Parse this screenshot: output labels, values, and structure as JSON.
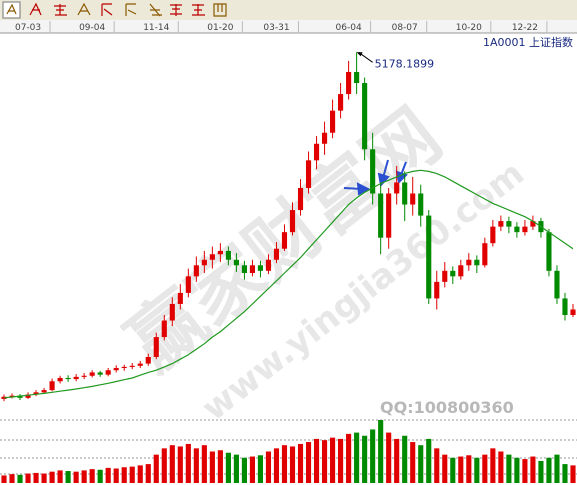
{
  "chart_data": {
    "type": "candlestick",
    "title": "1A0001 上证指数",
    "annotation": "5178.1899",
    "categories": [
      null,
      null,
      null,
      "07-03",
      null,
      null,
      null,
      null,
      null,
      null,
      null,
      "09-04",
      null,
      null,
      null,
      null,
      null,
      null,
      null,
      "11-14",
      null,
      null,
      null,
      null,
      null,
      null,
      null,
      "01-20",
      null,
      null,
      null,
      null,
      null,
      null,
      "03-31",
      null,
      null,
      null,
      null,
      null,
      null,
      null,
      null,
      "06-04",
      null,
      null,
      null,
      null,
      null,
      null,
      "08-07",
      null,
      null,
      null,
      null,
      null,
      null,
      null,
      "10-20",
      null,
      null,
      null,
      null,
      null,
      null,
      "12-22",
      null,
      null,
      null,
      null,
      null,
      null
    ],
    "ohlc": [
      [
        2040,
        2080,
        2020,
        2060
      ],
      [
        2060,
        2090,
        2045,
        2070
      ],
      [
        2070,
        2085,
        2030,
        2050
      ],
      [
        2050,
        2100,
        2040,
        2080
      ],
      [
        2080,
        2120,
        2065,
        2100
      ],
      [
        2100,
        2140,
        2085,
        2120
      ],
      [
        2120,
        2225,
        2110,
        2200
      ],
      [
        2200,
        2250,
        2180,
        2230
      ],
      [
        2230,
        2255,
        2195,
        2220
      ],
      [
        2220,
        2265,
        2200,
        2240
      ],
      [
        2240,
        2275,
        2220,
        2250
      ],
      [
        2250,
        2300,
        2235,
        2280
      ],
      [
        2280,
        2295,
        2240,
        2260
      ],
      [
        2260,
        2320,
        2245,
        2300
      ],
      [
        2300,
        2345,
        2280,
        2320
      ],
      [
        2320,
        2350,
        2295,
        2330
      ],
      [
        2330,
        2365,
        2310,
        2340
      ],
      [
        2340,
        2385,
        2320,
        2360
      ],
      [
        2360,
        2450,
        2340,
        2420
      ],
      [
        2420,
        2640,
        2400,
        2600
      ],
      [
        2600,
        2800,
        2570,
        2750
      ],
      [
        2750,
        2960,
        2700,
        2900
      ],
      [
        2900,
        3080,
        2850,
        3000
      ],
      [
        3000,
        3220,
        2960,
        3150
      ],
      [
        3150,
        3330,
        3100,
        3250
      ],
      [
        3250,
        3380,
        3180,
        3300
      ],
      [
        3300,
        3420,
        3220,
        3350
      ],
      [
        3350,
        3450,
        3280,
        3380
      ],
      [
        3380,
        3420,
        3250,
        3300
      ],
      [
        3300,
        3360,
        3190,
        3250
      ],
      [
        3250,
        3290,
        3120,
        3180
      ],
      [
        3180,
        3300,
        3150,
        3250
      ],
      [
        3250,
        3290,
        3140,
        3200
      ],
      [
        3200,
        3350,
        3170,
        3300
      ],
      [
        3300,
        3460,
        3270,
        3400
      ],
      [
        3400,
        3620,
        3380,
        3550
      ],
      [
        3550,
        3820,
        3520,
        3750
      ],
      [
        3750,
        4030,
        3700,
        3950
      ],
      [
        3950,
        4280,
        3900,
        4200
      ],
      [
        4200,
        4420,
        4120,
        4350
      ],
      [
        4350,
        4550,
        4250,
        4450
      ],
      [
        4450,
        4750,
        4400,
        4650
      ],
      [
        4650,
        4900,
        4580,
        4800
      ],
      [
        4800,
        5100,
        4750,
        5000
      ],
      [
        5000,
        5178.1899,
        4800,
        4900
      ],
      [
        4900,
        4950,
        4200,
        4300
      ],
      [
        4300,
        4450,
        3800,
        3900
      ],
      [
        3900,
        4000,
        3350,
        3500
      ],
      [
        3500,
        3950,
        3400,
        3900
      ],
      [
        3900,
        4150,
        3800,
        4000
      ],
      [
        4000,
        4100,
        3650,
        3800
      ],
      [
        3800,
        4050,
        3700,
        3900
      ],
      [
        3900,
        3980,
        3600,
        3700
      ],
      [
        3700,
        3750,
        2900,
        2950
      ],
      [
        2950,
        3200,
        2850,
        3100
      ],
      [
        3100,
        3280,
        3050,
        3200
      ],
      [
        3200,
        3240,
        3080,
        3150
      ],
      [
        3150,
        3300,
        3120,
        3250
      ],
      [
        3250,
        3360,
        3200,
        3300
      ],
      [
        3300,
        3340,
        3180,
        3250
      ],
      [
        3250,
        3500,
        3230,
        3450
      ],
      [
        3450,
        3660,
        3420,
        3600
      ],
      [
        3600,
        3700,
        3560,
        3650
      ],
      [
        3650,
        3690,
        3540,
        3600
      ],
      [
        3600,
        3640,
        3500,
        3550
      ],
      [
        3550,
        3660,
        3520,
        3600
      ],
      [
        3600,
        3700,
        3570,
        3650
      ],
      [
        3650,
        3680,
        3500,
        3550
      ],
      [
        3550,
        3580,
        3150,
        3200
      ],
      [
        3200,
        3250,
        2900,
        2950
      ],
      [
        2950,
        3000,
        2750,
        2800
      ],
      [
        2800,
        2900,
        2780,
        2850
      ]
    ],
    "up_color": "#e00000",
    "down_color": "#008a00",
    "ma": {
      "color": "#1f9a1f",
      "values": [
        2050,
        2058,
        2066,
        2074,
        2082,
        2090,
        2100,
        2110,
        2120,
        2130,
        2142,
        2154,
        2168,
        2182,
        2198,
        2214,
        2230,
        2255,
        2280,
        2300,
        2330,
        2360,
        2400,
        2440,
        2490,
        2540,
        2600,
        2650,
        2710,
        2770,
        2830,
        2900,
        2970,
        3040,
        3110,
        3180,
        3250,
        3320,
        3400,
        3480,
        3560,
        3640,
        3720,
        3800,
        3860,
        3910,
        3950,
        3990,
        4020,
        4050,
        4080,
        4100,
        4110,
        4100,
        4080,
        4050,
        4010,
        3970,
        3930,
        3890,
        3850,
        3810,
        3780,
        3750,
        3720,
        3690,
        3650,
        3600,
        3550,
        3500,
        3450,
        3400
      ]
    },
    "volume": {
      "values": [
        12,
        14,
        13,
        15,
        16,
        15,
        18,
        20,
        19,
        18,
        20,
        22,
        21,
        24,
        23,
        25,
        26,
        28,
        30,
        45,
        55,
        60,
        58,
        62,
        55,
        60,
        50,
        52,
        48,
        45,
        40,
        42,
        44,
        50,
        55,
        60,
        58,
        62,
        65,
        70,
        68,
        72,
        70,
        78,
        80,
        75,
        85,
        100,
        80,
        70,
        75,
        65,
        60,
        70,
        55,
        45,
        40,
        42,
        44,
        40,
        45,
        55,
        50,
        45,
        40,
        38,
        42,
        35,
        40,
        45,
        30,
        28
      ],
      "ylim": [
        0,
        100
      ]
    },
    "ylim": [
      1940,
      5380
    ]
  },
  "watermarks": {
    "site": "赢家财富网",
    "url": "www.yingjia360.com",
    "qq": "QQ:100800360"
  }
}
